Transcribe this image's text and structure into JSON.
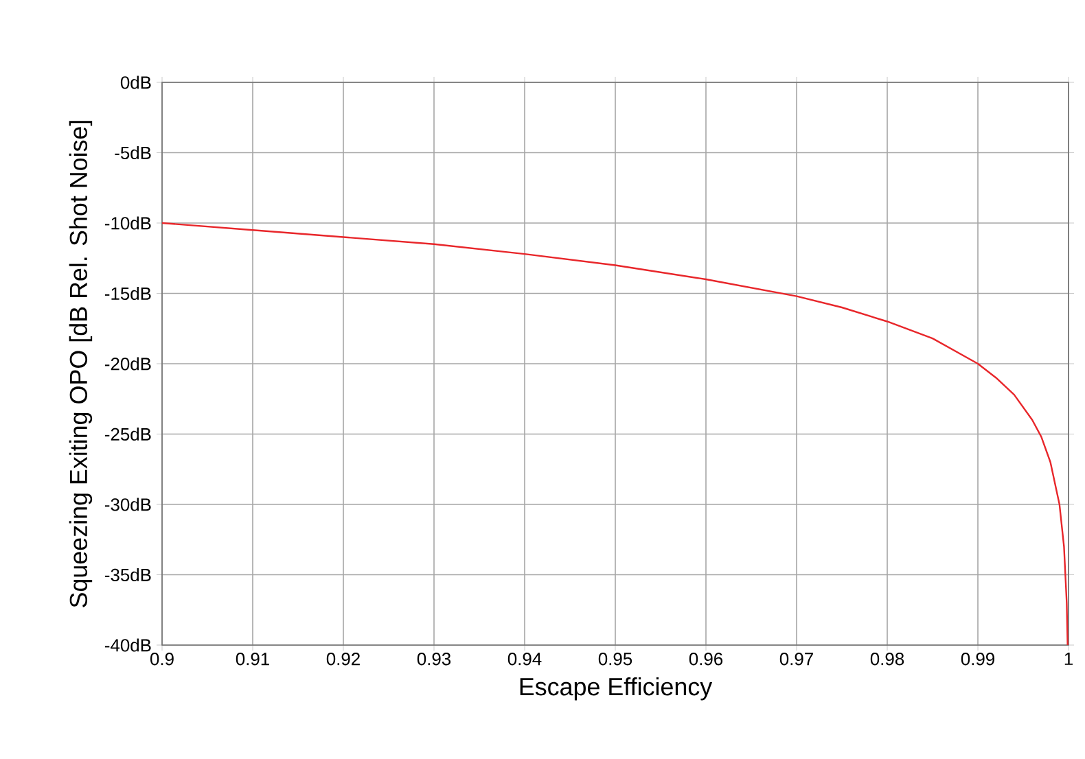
{
  "chart_data": {
    "type": "line",
    "xlabel": "Escape Efficiency",
    "ylabel": "Squeezing Exiting OPO [dB Rel. Shot Noise]",
    "series": [
      {
        "color": "#e8262a",
        "x": [
          0.9,
          0.91,
          0.92,
          0.93,
          0.94,
          0.95,
          0.96,
          0.97,
          0.975,
          0.98,
          0.985,
          0.99,
          0.992,
          0.994,
          0.996,
          0.997,
          0.998,
          0.999,
          0.9995,
          0.9998,
          0.9999
        ],
        "values": [
          -10,
          -10.5,
          -11,
          -11.5,
          -12.2,
          -13,
          -14,
          -15.2,
          -16,
          -17,
          -18.2,
          -20,
          -21,
          -22.2,
          -24,
          -25.2,
          -27,
          -30,
          -33,
          -37,
          -40
        ]
      }
    ],
    "xlim": [
      0.9,
      1
    ],
    "ylim": [
      -40,
      0
    ],
    "xticks": [
      0.9,
      0.91,
      0.92,
      0.93,
      0.94,
      0.95,
      0.96,
      0.97,
      0.98,
      0.99,
      1
    ],
    "yticks": [
      {
        "value": 0,
        "label": "0dB"
      },
      {
        "value": -5,
        "label": "-5dB"
      },
      {
        "value": -10,
        "label": "-10dB"
      },
      {
        "value": -15,
        "label": "-15dB"
      },
      {
        "value": -20,
        "label": "-20dB"
      },
      {
        "value": -25,
        "label": "-25dB"
      },
      {
        "value": -30,
        "label": "-30dB"
      },
      {
        "value": -35,
        "label": "-35dB"
      },
      {
        "value": -40,
        "label": "-40dB"
      }
    ],
    "grid": true,
    "marker": "none",
    "line_style": "solid"
  }
}
